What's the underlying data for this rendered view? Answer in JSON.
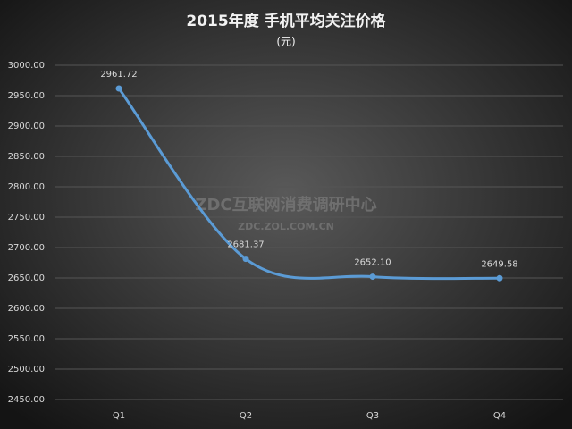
{
  "chart_data": {
    "type": "line",
    "title": "2015年度 手机平均关注价格",
    "subtitle": "(元)",
    "watermark": [
      "ZDC互联网消费调研中心",
      "ZDC.ZOL.COM.CN"
    ],
    "categories": [
      "Q1",
      "Q2",
      "Q3",
      "Q4"
    ],
    "series": [
      {
        "name": "手机平均关注价格",
        "color": "#5b9bd5",
        "values": [
          2961.72,
          2681.37,
          2652.1,
          2649.58
        ],
        "value_labels": [
          "2961.72",
          "2681.37",
          "2652.10",
          "2649.58"
        ]
      }
    ],
    "ylim": [
      2450,
      3000
    ],
    "yticks": [
      {
        "value": 2450,
        "label": "2450.00"
      },
      {
        "value": 2500,
        "label": "2500.00"
      },
      {
        "value": 2550,
        "label": "2550.00"
      },
      {
        "value": 2600,
        "label": "2600.00"
      },
      {
        "value": 2650,
        "label": "2650.00"
      },
      {
        "value": 2700,
        "label": "2700.00"
      },
      {
        "value": 2750,
        "label": "2750.00"
      },
      {
        "value": 2800,
        "label": "2800.00"
      },
      {
        "value": 2850,
        "label": "2850.00"
      },
      {
        "value": 2900,
        "label": "2900.00"
      },
      {
        "value": 2950,
        "label": "2950.00"
      },
      {
        "value": 3000,
        "label": "3000.00"
      }
    ],
    "grid": true
  }
}
